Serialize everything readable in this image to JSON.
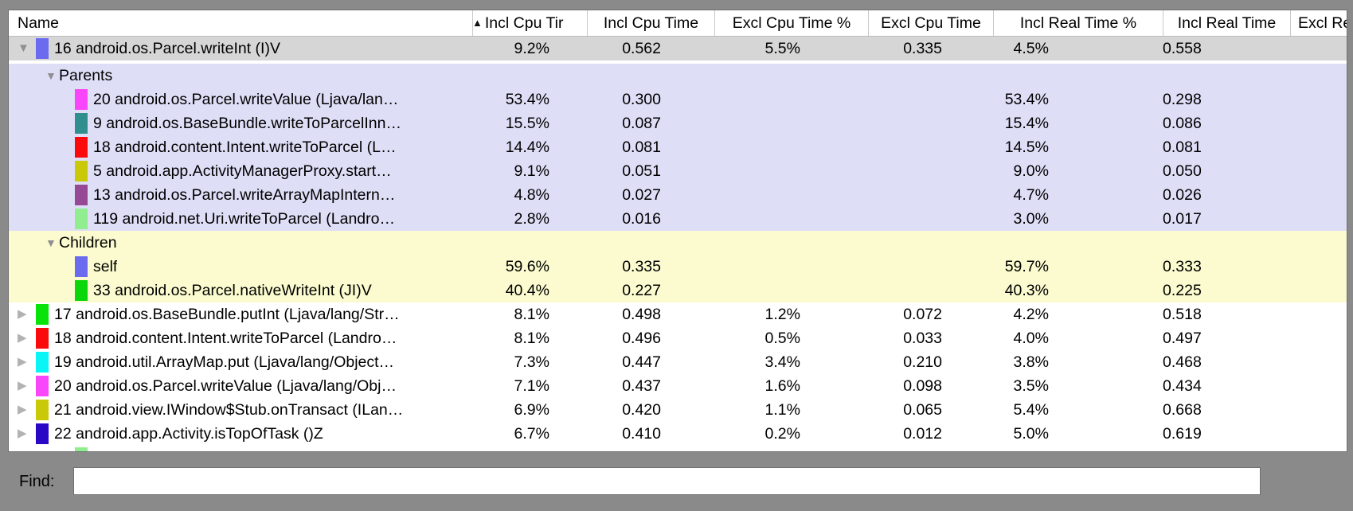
{
  "header": {
    "columns": [
      "Name",
      "Incl Cpu Tir",
      "Incl Cpu Time",
      "Excl Cpu Time %",
      "Excl Cpu Time",
      "Incl Real Time %",
      "Incl Real Time",
      "Excl Real"
    ],
    "sort_column_index": 1,
    "sort_icon": "▲"
  },
  "section_colors": {
    "selected_row": "#d6d6d6",
    "parents_section": "#dedef7",
    "children_section": "#fbfbcf",
    "window_frame": "#8a8a8a"
  },
  "rows": [
    {
      "type": "root",
      "disclosure": "expanded",
      "swatch": "#6b6bf0",
      "name": "16 android.os.Parcel.writeInt (I)V",
      "bg": "selected",
      "values": [
        "9.2%",
        "0.562",
        "5.5%",
        "0.335",
        "4.5%",
        "0.558"
      ]
    },
    {
      "type": "section",
      "disclosure": "expanded",
      "name": "Parents",
      "bg": "parents",
      "values": [
        "",
        "",
        "",
        "",
        "",
        ""
      ]
    },
    {
      "type": "leaf",
      "swatch": "#fa46fa",
      "name": "20 android.os.Parcel.writeValue (Ljava/lan…",
      "bg": "parents",
      "values": [
        "53.4%",
        "0.300",
        "",
        "",
        "53.4%",
        "0.298"
      ]
    },
    {
      "type": "leaf",
      "swatch": "#2f8f8f",
      "name": "9 android.os.BaseBundle.writeToParcelInn…",
      "bg": "parents",
      "values": [
        "15.5%",
        "0.087",
        "",
        "",
        "15.4%",
        "0.086"
      ]
    },
    {
      "type": "leaf",
      "swatch": "#fa0a0a",
      "name": "18 android.content.Intent.writeToParcel (L…",
      "bg": "parents",
      "values": [
        "14.4%",
        "0.081",
        "",
        "",
        "14.5%",
        "0.081"
      ]
    },
    {
      "type": "leaf",
      "swatch": "#c9c90a",
      "name": "5 android.app.ActivityManagerProxy.start…",
      "bg": "parents",
      "values": [
        "9.1%",
        "0.051",
        "",
        "",
        "9.0%",
        "0.050"
      ]
    },
    {
      "type": "leaf",
      "swatch": "#964a96",
      "name": "13 android.os.Parcel.writeArrayMapIntern…",
      "bg": "parents",
      "values": [
        "4.8%",
        "0.027",
        "",
        "",
        "4.7%",
        "0.026"
      ]
    },
    {
      "type": "leaf",
      "swatch": "#90ee90",
      "name": "119 android.net.Uri.writeToParcel (Landro…",
      "bg": "parents",
      "values": [
        "2.8%",
        "0.016",
        "",
        "",
        "3.0%",
        "0.017"
      ]
    },
    {
      "type": "section",
      "disclosure": "expanded",
      "name": "Children",
      "bg": "children",
      "values": [
        "",
        "",
        "",
        "",
        "",
        ""
      ]
    },
    {
      "type": "leaf",
      "swatch": "#6b6bf0",
      "name": "self",
      "bg": "children",
      "values": [
        "59.6%",
        "0.335",
        "",
        "",
        "59.7%",
        "0.333"
      ]
    },
    {
      "type": "leaf",
      "swatch": "#0ad60a",
      "name": "33 android.os.Parcel.nativeWriteInt (JI)V",
      "bg": "children",
      "values": [
        "40.4%",
        "0.227",
        "",
        "",
        "40.3%",
        "0.225"
      ]
    },
    {
      "type": "root",
      "disclosure": "collapsed",
      "swatch": "#0ae30a",
      "name": "17 android.os.BaseBundle.putInt (Ljava/lang/Str…",
      "bg": "white",
      "values": [
        "8.1%",
        "0.498",
        "1.2%",
        "0.072",
        "4.2%",
        "0.518"
      ]
    },
    {
      "type": "root",
      "disclosure": "collapsed",
      "swatch": "#fa0a0a",
      "name": "18 android.content.Intent.writeToParcel (Landro…",
      "bg": "white",
      "values": [
        "8.1%",
        "0.496",
        "0.5%",
        "0.033",
        "4.0%",
        "0.497"
      ]
    },
    {
      "type": "root",
      "disclosure": "collapsed",
      "swatch": "#0af6f6",
      "name": "19 android.util.ArrayMap.put (Ljava/lang/Object…",
      "bg": "white",
      "values": [
        "7.3%",
        "0.447",
        "3.4%",
        "0.210",
        "3.8%",
        "0.468"
      ]
    },
    {
      "type": "root",
      "disclosure": "collapsed",
      "swatch": "#fa46fa",
      "name": "20 android.os.Parcel.writeValue (Ljava/lang/Obj…",
      "bg": "white",
      "values": [
        "7.1%",
        "0.437",
        "1.6%",
        "0.098",
        "3.5%",
        "0.434"
      ]
    },
    {
      "type": "root",
      "disclosure": "collapsed",
      "swatch": "#c9c90a",
      "name": "21 android.view.IWindow$Stub.onTransact (ILan…",
      "bg": "white",
      "values": [
        "6.9%",
        "0.420",
        "1.1%",
        "0.065",
        "5.4%",
        "0.668"
      ]
    },
    {
      "type": "root",
      "disclosure": "collapsed",
      "swatch": "#2a08c6",
      "name": "22 android.app.Activity.isTopOfTask ()Z",
      "bg": "white",
      "values": [
        "6.7%",
        "0.410",
        "0.2%",
        "0.012",
        "5.0%",
        "0.619"
      ]
    },
    {
      "type": "partial",
      "swatch": "#90ee90",
      "name": "",
      "bg": "white",
      "values": [
        "",
        "",
        "",
        "",
        "",
        ""
      ]
    }
  ],
  "find": {
    "label": "Find:",
    "value": "",
    "placeholder": ""
  }
}
